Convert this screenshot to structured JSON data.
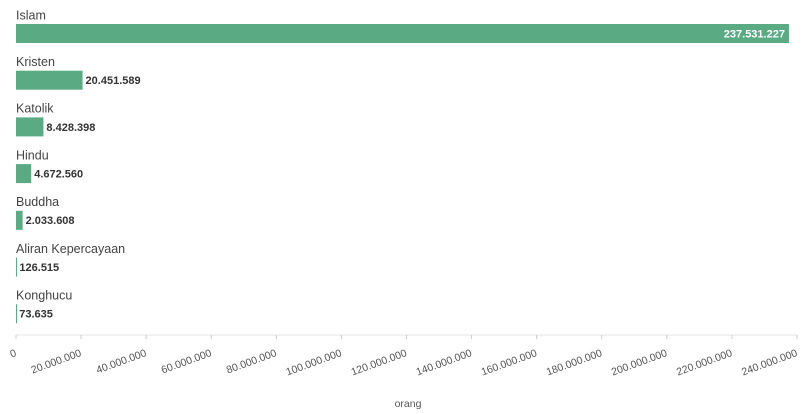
{
  "chart_data": {
    "type": "bar",
    "orientation": "horizontal",
    "categories": [
      "Islam",
      "Kristen",
      "Katolik",
      "Hindu",
      "Buddha",
      "Aliran Kepercayaan",
      "Konghucu"
    ],
    "values": [
      237531227,
      20451589,
      8428398,
      4672560,
      2033608,
      126515,
      73635
    ],
    "value_labels": [
      "237.531.227",
      "20.451.589",
      "8.428.398",
      "4.672.560",
      "2.033.608",
      "126.515",
      "73.635"
    ],
    "color": "#5aab84",
    "xlabel": "orang",
    "xlim": [
      0,
      240000000
    ],
    "xticks": [
      0,
      {
        "value": 20000000,
        "label": "20.000.000"
      },
      {
        "value": 40000000,
        "label": "40.000.000"
      },
      {
        "value": 60000000,
        "label": "60.000.000"
      },
      {
        "value": 80000000,
        "label": "80.000.000"
      },
      {
        "value": 100000000,
        "label": "100.000.000"
      },
      {
        "value": 120000000,
        "label": "120.000.000"
      },
      {
        "value": 140000000,
        "label": "140.000.000"
      },
      {
        "value": 160000000,
        "label": "160.000.000"
      },
      {
        "value": 180000000,
        "label": "180.000.000"
      },
      {
        "value": 200000000,
        "label": "200.000.000"
      },
      {
        "value": 220000000,
        "label": "220.000.000"
      },
      {
        "value": 240000000,
        "label": "240.000.000"
      }
    ]
  }
}
